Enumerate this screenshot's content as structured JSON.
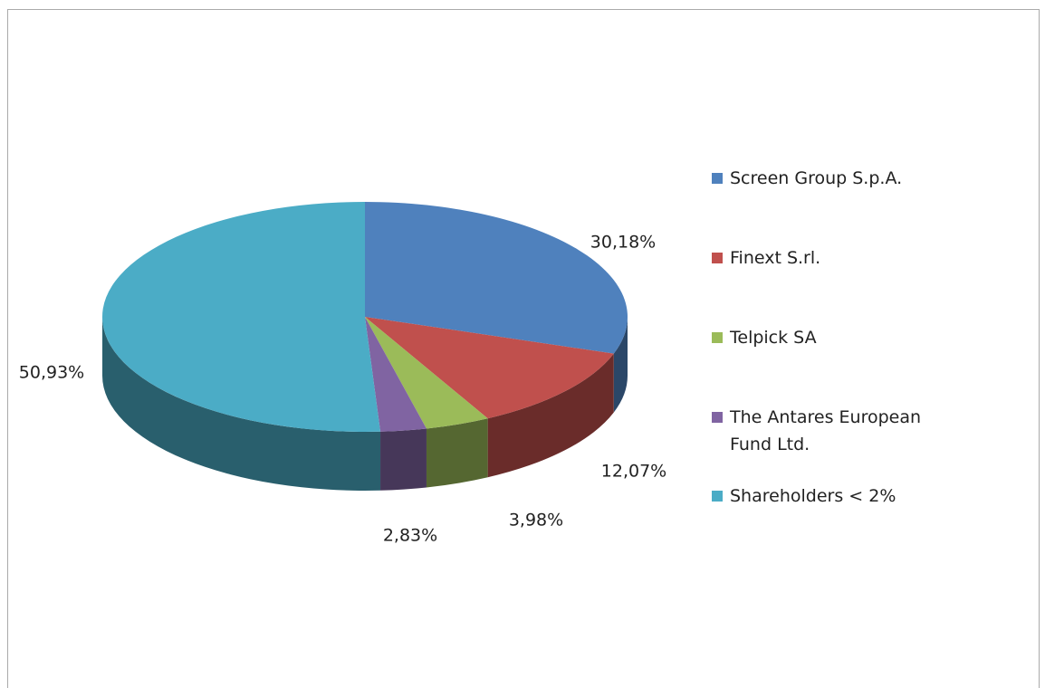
{
  "chart_data": {
    "type": "pie3d",
    "categories": [
      "Screen Group S.p.A.",
      "Finext S.rl.",
      "Telpick SA",
      "The Antares European Fund Ltd.",
      "Shareholders < 2%"
    ],
    "values": [
      30.18,
      12.07,
      3.98,
      2.83,
      50.93
    ],
    "value_labels": [
      "30,18%",
      "12,07%",
      "3,98%",
      "2,83%",
      "50,93%"
    ],
    "colors": [
      "#4f81bd",
      "#c0504d",
      "#9bbb59",
      "#8064a2",
      "#4bacc6"
    ],
    "legend": "right"
  }
}
